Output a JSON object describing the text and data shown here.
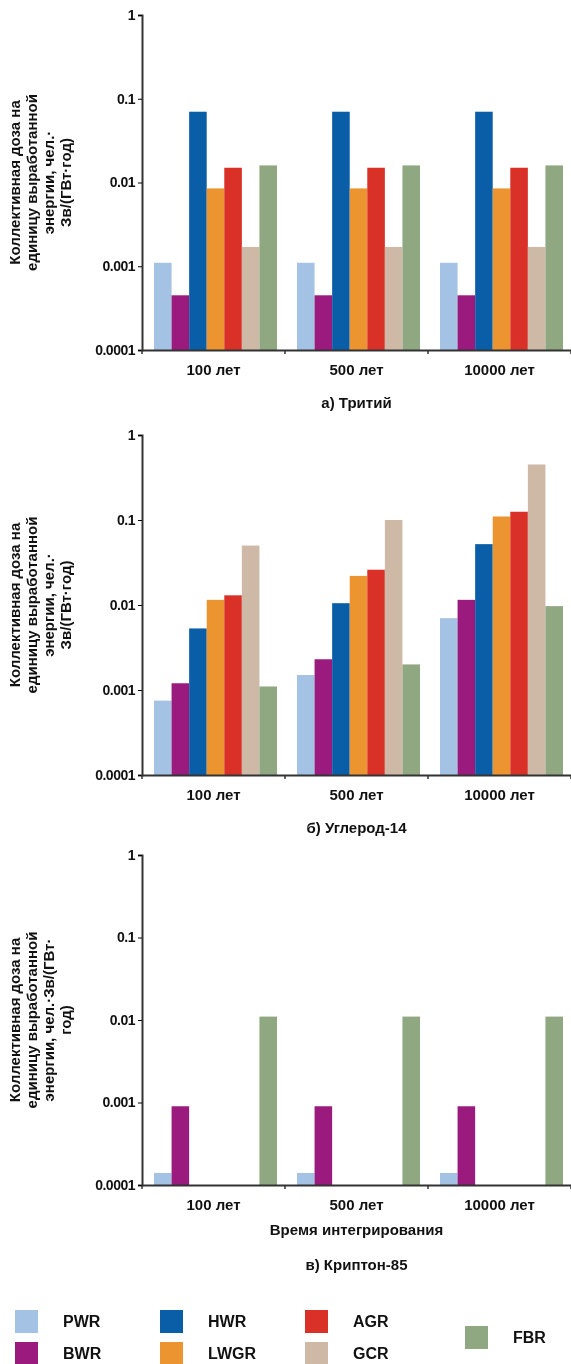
{
  "chart_data": [
    {
      "type": "bar",
      "title": "а) Тритий",
      "ylabel": "Коллективная доза на единицу выработанной энергии, чел.· Зв/(ГВт·год)",
      "categories": [
        "100 лет",
        "500 лет",
        "10000 лет"
      ],
      "log": true,
      "ylim": [
        0.0001,
        1
      ],
      "yticks": [
        0.0001,
        0.001,
        0.01,
        0.1,
        1
      ],
      "series": [
        {
          "color": "#a4c2e4",
          "values": [
            0.0011,
            0.0011,
            0.0011
          ]
        },
        {
          "color": "#9b1a7e",
          "values": [
            0.00045,
            0.00045,
            0.00045
          ]
        },
        {
          "color": "#0a5ea8",
          "values": [
            0.07,
            0.07,
            0.07
          ]
        },
        {
          "color": "#ec9530",
          "values": [
            0.0085,
            0.0085,
            0.0085
          ]
        },
        {
          "color": "#d93128",
          "values": [
            0.015,
            0.015,
            0.015
          ]
        },
        {
          "color": "#cdb9a5",
          "values": [
            0.0017,
            0.0017,
            0.0017
          ]
        },
        {
          "color": "#8fa882",
          "values": [
            0.016,
            0.016,
            0.016
          ]
        }
      ]
    },
    {
      "type": "bar",
      "title": "б) Углерод-14",
      "ylabel": "Коллективная доза на единицу выработанной энергии, чел.· Зв/(ГВт·год)",
      "categories": [
        "100 лет",
        "500 лет",
        "10000 лет"
      ],
      "log": true,
      "ylim": [
        0.0001,
        1
      ],
      "yticks": [
        0.0001,
        0.001,
        0.01,
        0.1,
        1
      ],
      "series": [
        {
          "color": "#a4c2e4",
          "values": [
            0.00075,
            0.0015,
            0.007
          ]
        },
        {
          "color": "#9b1a7e",
          "values": [
            0.0012,
            0.0023,
            0.0115
          ]
        },
        {
          "color": "#0a5ea8",
          "values": [
            0.0053,
            0.0105,
            0.052
          ]
        },
        {
          "color": "#ec9530",
          "values": [
            0.0115,
            0.022,
            0.11
          ]
        },
        {
          "color": "#d93128",
          "values": [
            0.013,
            0.026,
            0.125
          ]
        },
        {
          "color": "#cdb9a5",
          "values": [
            0.05,
            0.1,
            0.45
          ]
        },
        {
          "color": "#8fa882",
          "values": [
            0.0011,
            0.002,
            0.0097
          ]
        }
      ]
    },
    {
      "type": "bar",
      "title": "в) Криптон-85",
      "xlabel": "Время интегрирования",
      "ylabel": "Коллективная доза на единицу выработанной энергии, чел.·Зв/(ГВт· год)",
      "categories": [
        "100 лет",
        "500 лет",
        "10000 лет"
      ],
      "log": true,
      "ylim": [
        0.0001,
        1
      ],
      "yticks": [
        0.0001,
        0.001,
        0.01,
        0.1,
        1
      ],
      "legend": "bottom",
      "series": [
        {
          "name": "PWR",
          "color": "#a4c2e4",
          "values": [
            0.00014,
            0.00014,
            0.00014
          ]
        },
        {
          "name": "BWR",
          "color": "#9b1a7e",
          "values": [
            0.0009,
            0.0009,
            0.0009
          ]
        },
        {
          "name": "HWR",
          "color": "#0a5ea8",
          "values": [
            null,
            null,
            null
          ]
        },
        {
          "name": "LWGR",
          "color": "#ec9530",
          "values": [
            null,
            null,
            null
          ]
        },
        {
          "name": "AGR",
          "color": "#d93128",
          "values": [
            null,
            null,
            null
          ]
        },
        {
          "name": "GCR",
          "color": "#cdb9a5",
          "values": [
            null,
            null,
            null
          ]
        },
        {
          "name": "FBR",
          "color": "#8fa882",
          "values": [
            0.011,
            0.011,
            0.011
          ]
        }
      ]
    }
  ]
}
